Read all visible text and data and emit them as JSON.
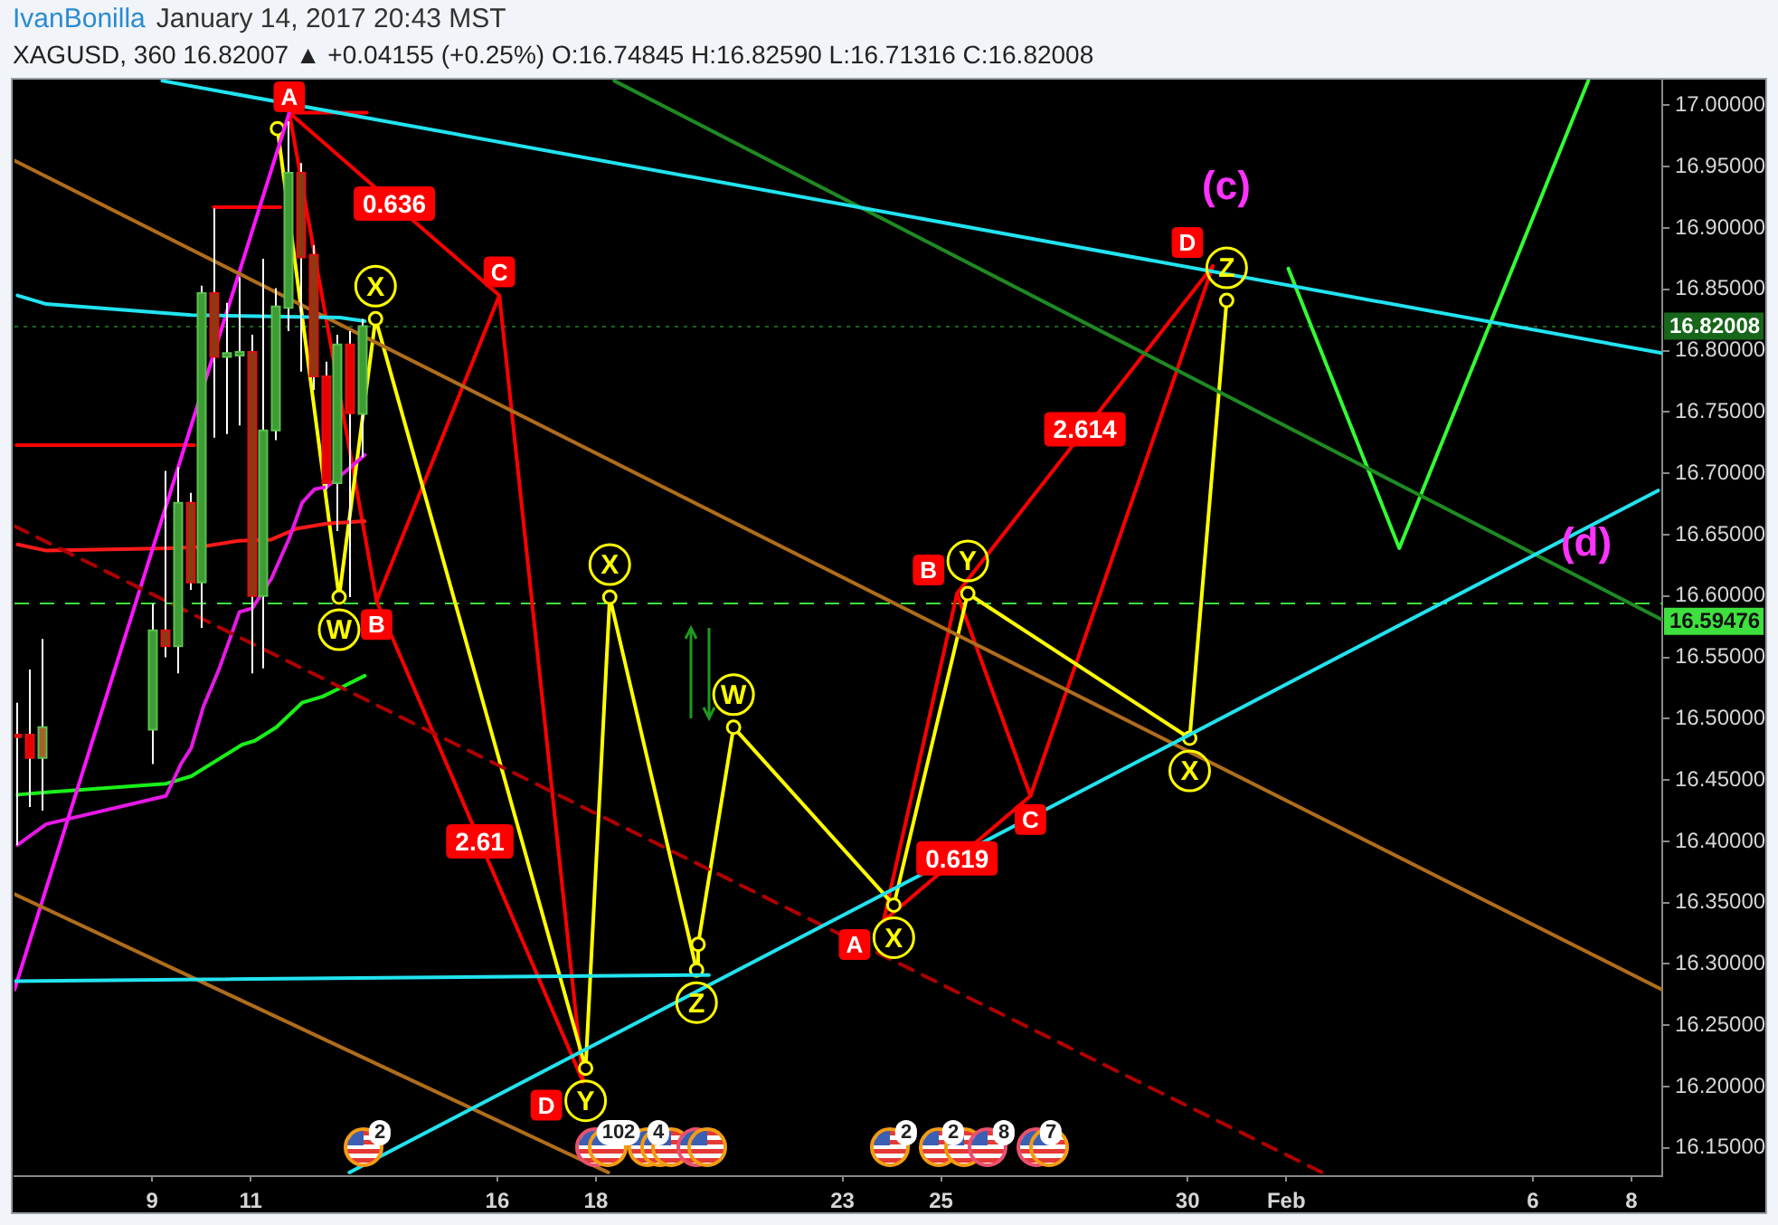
{
  "chart_data": {
    "type": "candlestick",
    "title": "IvanBonilla",
    "subtitle": "XAGUSD, 360  16.82007 ▲ +0.04155 (+0.25%)  O:16.74845 H:16.82590 L:16.71316 C:16.82008",
    "annotations": [
      "January 14, 2017 20:43 MST",
      "(c)",
      "(d)",
      "2",
      "102",
      "4",
      "2",
      "2",
      "8",
      "7",
      {
        "text": "0.636",
        "x": "2017-01-13T21:53",
        "y": 16.92
      },
      {
        "text": "2.61",
        "x": "2017-01-15T15:30",
        "y": 16.4
      },
      {
        "text": "0.619",
        "x": "2017-01-25T07:45",
        "y": 16.386
      },
      {
        "text": "2.614",
        "x": "2017-01-27T22:00",
        "y": 16.736
      }
    ],
    "x": [
      "2017-01-06T06:00",
      "2017-01-06T12:00",
      "2017-01-06T18:00",
      "2017-01-09T00:00",
      "2017-01-09T06:00",
      "2017-01-09T12:00",
      "2017-01-09T18:00",
      "2017-01-10T00:00",
      "2017-01-10T06:00",
      "2017-01-10T12:00",
      "2017-01-10T18:00",
      "2017-01-11T00:00",
      "2017-01-11T06:00",
      "2017-01-11T12:00",
      "2017-01-11T18:00",
      "2017-01-12T00:00",
      "2017-01-12T06:00",
      "2017-01-12T12:00",
      "2017-01-12T18:00",
      "2017-01-13T00:00",
      "2017-01-13T06:00"
    ],
    "ohlc": [
      [
        16.487,
        16.513,
        16.397,
        16.485
      ],
      [
        16.487,
        16.54,
        16.428,
        16.468
      ],
      [
        16.468,
        16.565,
        16.425,
        16.493
      ],
      [
        16.491,
        16.594,
        16.463,
        16.572
      ],
      [
        16.572,
        16.702,
        16.55,
        16.559
      ],
      [
        16.559,
        16.705,
        16.537,
        16.676
      ],
      [
        16.676,
        16.684,
        16.605,
        16.611
      ],
      [
        16.611,
        16.853,
        16.574,
        16.847
      ],
      [
        16.847,
        16.916,
        16.729,
        16.795
      ],
      [
        16.795,
        16.839,
        16.732,
        16.798
      ],
      [
        16.796,
        16.86,
        16.739,
        16.799
      ],
      [
        16.799,
        16.813,
        16.537,
        16.6
      ],
      [
        16.6,
        16.875,
        16.541,
        16.735
      ],
      [
        16.735,
        16.851,
        16.727,
        16.836
      ],
      [
        16.835,
        16.987,
        16.816,
        16.945
      ],
      [
        16.945,
        16.953,
        16.783,
        16.876
      ],
      [
        16.878,
        16.886,
        16.768,
        16.779
      ],
      [
        16.779,
        16.791,
        16.687,
        16.692
      ],
      [
        16.692,
        16.813,
        16.653,
        16.805
      ],
      [
        16.805,
        16.816,
        16.599,
        16.749
      ],
      [
        16.74845,
        16.8259,
        16.71316,
        16.82008
      ]
    ],
    "colors": [
      "#e60000",
      "#e60000",
      "#a5602c",
      "#3d9c33",
      "#8b3a12",
      "#3d9c33",
      "#8b3a12",
      "#3d9c33",
      "#8b3a12",
      "#3d9c33",
      "#3d9c33",
      "#8b3a12",
      "#3d9c33",
      "#3d9c33",
      "#3d9c33",
      "#8b3a12",
      "#8b3a12",
      "#e60000",
      "#3d9c33",
      "#e60000",
      "#3d9c33"
    ],
    "xlim": [
      "2017-01-06T05:00",
      "2017-02-08T15:00"
    ],
    "xticks": [
      {
        "value": "2017-01-09",
        "label": "9"
      },
      {
        "value": "2017-01-11",
        "label": "11"
      },
      {
        "value": "2017-01-16",
        "label": "16"
      },
      {
        "value": "2017-01-18",
        "label": "18"
      },
      {
        "value": "2017-01-23",
        "label": "23"
      },
      {
        "value": "2017-01-25",
        "label": "25"
      },
      {
        "value": "2017-01-30",
        "label": "30"
      },
      {
        "value": "2017-02-01",
        "label": "Feb"
      },
      {
        "value": "2017-02-06",
        "label": "6"
      },
      {
        "value": "2017-02-08",
        "label": "8"
      }
    ],
    "ylim": [
      16.127,
      17.021
    ],
    "yticks": [
      {
        "value": 16.15,
        "label": "16.15000"
      },
      {
        "value": 16.2,
        "label": "16.20000"
      },
      {
        "value": 16.25,
        "label": "16.25000"
      },
      {
        "value": 16.3,
        "label": "16.30000"
      },
      {
        "value": 16.35,
        "label": "16.35000"
      },
      {
        "value": 16.4,
        "label": "16.40000"
      },
      {
        "value": 16.45,
        "label": "16.45000"
      },
      {
        "value": 16.5,
        "label": "16.50000"
      },
      {
        "value": 16.55,
        "label": "16.55000"
      },
      {
        "value": 16.6,
        "label": "16.60000"
      },
      {
        "value": 16.65,
        "label": "16.65000"
      },
      {
        "value": 16.7,
        "label": "16.70000"
      },
      {
        "value": 16.75,
        "label": "16.75000"
      },
      {
        "value": 16.8,
        "label": "16.80000"
      },
      {
        "value": 16.85,
        "label": "16.85000"
      },
      {
        "value": 16.9,
        "label": "16.90000"
      },
      {
        "value": 16.95,
        "label": "16.95000"
      },
      {
        "value": 17,
        "label": "17.00000"
      }
    ],
    "ref_lines": [
      {
        "axis": "y",
        "value": 16.82008,
        "label": "16.82008",
        "color": "#17661a",
        "line_style": "dotted"
      },
      {
        "axis": "y",
        "value": 16.59476,
        "label": "16.59476",
        "color": "#3ee03e",
        "line_style": "dashed"
      }
    ],
    "series": [
      {
        "type": "line",
        "color": "#22e3f0",
        "x": [
          "2017-01-09T05:00",
          "2017-02-08T15:00"
        ],
        "values": [
          17.02,
          16.798
        ]
      },
      {
        "type": "line",
        "color": "#22e3f0",
        "x": [
          "2017-01-13T00:00",
          "2017-02-08T13:00"
        ],
        "values": [
          16.13,
          16.686
        ]
      },
      {
        "type": "line",
        "color": "#22e3f0",
        "x": [
          "2017-01-06T05:00",
          "2017-01-20T07:00"
        ],
        "values": [
          16.286,
          16.291
        ]
      },
      {
        "type": "line",
        "color": "#22e3f0",
        "x": [
          "2017-01-06T06:30",
          "2017-01-06T20:30",
          "2017-01-09T19:00",
          "2017-01-12T19:30",
          "2017-01-13T07:30"
        ],
        "values": [
          16.845,
          16.838,
          16.829,
          16.827,
          16.824
        ]
      },
      {
        "type": "line",
        "color": "#b06d1c",
        "x": [
          "2017-01-06T05:00",
          "2017-02-08T15:00"
        ],
        "values": [
          16.955,
          16.279
        ]
      },
      {
        "type": "line",
        "color": "#b06d1c",
        "x": [
          "2017-01-06T05:00",
          "2017-01-18T06:00"
        ],
        "values": [
          16.357,
          16.13
        ]
      },
      {
        "type": "line",
        "color": "#1f8a22",
        "x": [
          "2017-01-18T09:00",
          "2017-02-08T14:30"
        ],
        "values": [
          17.02,
          16.581
        ]
      },
      {
        "type": "line",
        "color": "#b00000",
        "line_style": "dashed",
        "x": [
          "2017-01-06T05:00",
          "2017-02-01T21:00"
        ],
        "values": [
          16.657,
          16.127
        ]
      },
      {
        "type": "line",
        "color": "#ff14ff",
        "x": [
          "2017-01-06T05:00",
          "2017-01-11T18:45"
        ],
        "values": [
          16.279,
          16.994
        ]
      },
      {
        "type": "line",
        "color": "#e619e6",
        "x": [
          "2017-01-06T06:30",
          "2017-01-06T20:30",
          "2017-01-09T06:45",
          "2017-01-09T14:00",
          "2017-01-09T19:00",
          "2017-01-10T01:00",
          "2017-01-10T08:30",
          "2017-01-10T18:30",
          "2017-01-11T00:45",
          "2017-01-11T10:00",
          "2017-01-11T18:45",
          "2017-01-12T01:00",
          "2017-01-12T07:00",
          "2017-01-12T13:00",
          "2017-01-12T22:30",
          "2017-01-13T07:30"
        ],
        "values": [
          16.397,
          16.414,
          16.437,
          16.463,
          16.476,
          16.51,
          16.54,
          16.587,
          16.59,
          16.614,
          16.647,
          16.676,
          16.687,
          16.689,
          16.702,
          16.715
        ]
      },
      {
        "type": "line",
        "color": "#19f019",
        "x": [
          "2017-01-06T06:30",
          "2017-01-06T20:30",
          "2017-01-09T06:45",
          "2017-01-09T19:00",
          "2017-01-10T07:30",
          "2017-01-10T20:00",
          "2017-01-11T02:00",
          "2017-01-11T12:30",
          "2017-01-12T01:00",
          "2017-01-12T11:00",
          "2017-01-12T19:30",
          "2017-01-13T07:30"
        ],
        "values": [
          16.438,
          16.44,
          16.447,
          16.453,
          16.466,
          16.479,
          16.482,
          16.493,
          16.513,
          16.518,
          16.525,
          16.535
        ]
      },
      {
        "type": "line",
        "color": "#ff1a1a",
        "x": [
          "2017-01-06T06:30",
          "2017-01-06T20:30",
          "2017-01-09T08:30",
          "2017-01-09T23:30",
          "2017-01-10T18:00",
          "2017-01-11T10:00",
          "2017-01-11T22:30",
          "2017-01-12T13:00",
          "2017-01-13T07:30"
        ],
        "values": [
          16.642,
          16.637,
          16.639,
          16.64,
          16.645,
          16.646,
          16.655,
          16.659,
          16.661
        ]
      },
      {
        "type": "line",
        "color": "#ff0000",
        "x": [
          "2017-01-06T06:00",
          "2017-01-09T20:30"
        ],
        "values": [
          16.723,
          16.723
        ]
      },
      {
        "type": "line",
        "color": "#ff0000",
        "x": [
          "2017-01-10T06:00",
          "2017-01-11T14:30"
        ],
        "values": [
          16.917,
          16.917
        ]
      },
      {
        "type": "line",
        "color": "#ff0000",
        "x": [
          "2017-01-11T20:30",
          "2017-01-13T08:30"
        ],
        "values": [
          16.994,
          16.994
        ]
      },
      {
        "type": "line",
        "color": "#ffff00",
        "marker": "circle",
        "x": [
          "2017-01-11T13:00",
          "2017-01-12T19:00",
          "2017-01-13T12:45",
          "2017-01-17T19:00",
          "2017-01-18T06:45",
          "2017-01-20T01:00",
          "2017-01-20T01:45",
          "2017-01-20T19:00",
          "2017-01-24T01:00",
          "2017-01-25T13:00",
          "2017-01-30T01:00",
          "2017-01-30T19:00"
        ],
        "values": [
          16.981,
          16.599,
          16.826,
          16.215,
          16.599,
          16.295,
          16.316,
          16.493,
          16.348,
          16.602,
          16.484,
          16.841
        ],
        "value_labels": [
          null,
          "W",
          "X",
          "Y",
          "X",
          "Z",
          null,
          "W",
          "X",
          "Y",
          "X",
          "Z"
        ]
      },
      {
        "type": "line",
        "color": "#ff0000",
        "x": [
          "2017-01-11T18:45",
          "2017-01-13T13:15",
          "2017-01-16T01:00",
          "2017-01-17T17:45"
        ],
        "values": [
          16.994,
          16.596,
          16.845,
          16.204
        ],
        "value_labels": [
          "A",
          "B",
          "C",
          "D"
        ]
      },
      {
        "type": "line",
        "color": "#ff0000",
        "x": [
          "2017-01-11T18:45",
          "2017-01-16T01:00"
        ],
        "values": [
          16.994,
          16.845
        ]
      },
      {
        "type": "line",
        "color": "#ff0000",
        "x": [
          "2017-01-13T13:15",
          "2017-01-17T17:45"
        ],
        "values": [
          16.596,
          16.204
        ]
      },
      {
        "type": "line",
        "color": "#ff0000",
        "x": [
          "2017-01-23T20:00",
          "2017-01-25T07:45",
          "2017-01-26T19:30",
          "2017-01-30T12:15"
        ],
        "values": [
          16.335,
          16.602,
          16.437,
          16.869
        ],
        "value_labels": [
          "A",
          "B",
          "C",
          "D"
        ]
      },
      {
        "type": "line",
        "color": "#ff0000",
        "x": [
          "2017-01-23T20:00",
          "2017-01-26T19:30"
        ],
        "values": [
          16.335,
          16.437
        ]
      },
      {
        "type": "line",
        "color": "#ff0000",
        "x": [
          "2017-01-25T07:45",
          "2017-01-30T12:15"
        ],
        "values": [
          16.602,
          16.869
        ]
      },
      {
        "type": "line",
        "color": "#33ff33",
        "x": [
          "2017-02-01T01:00",
          "2017-02-03T07:00",
          "2017-02-07T03:00"
        ],
        "values": [
          16.867,
          16.639,
          17.02
        ]
      }
    ]
  }
}
